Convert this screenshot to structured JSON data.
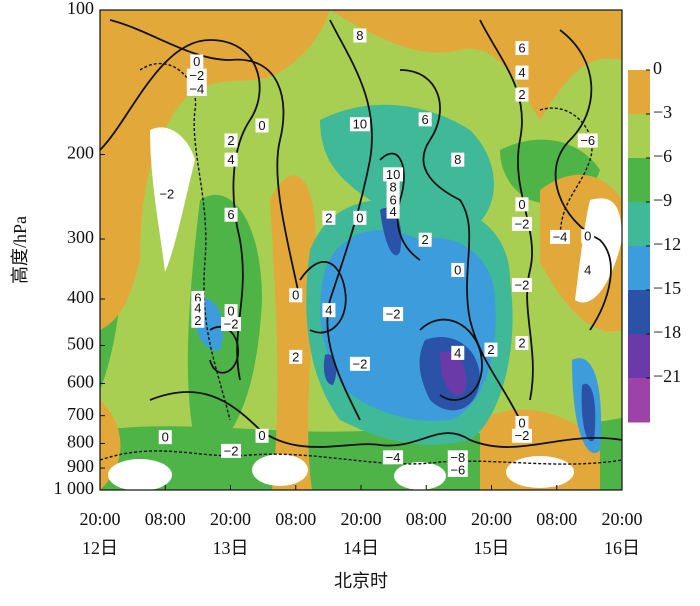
{
  "chart_data": {
    "type": "contourf",
    "y_label": "高度/hPa",
    "x_label": "北京时",
    "xlim": [
      0,
      96
    ],
    "xticks": [
      {
        "value": 0,
        "label": "20:00"
      },
      {
        "value": 12,
        "label": "08:00"
      },
      {
        "value": 24,
        "label": "20:00"
      },
      {
        "value": 36,
        "label": "08:00"
      },
      {
        "value": 48,
        "label": "20:00"
      },
      {
        "value": 60,
        "label": "08:00"
      },
      {
        "value": 72,
        "label": "20:00"
      },
      {
        "value": 84,
        "label": "08:00"
      },
      {
        "value": 96,
        "label": "20:00"
      }
    ],
    "xticks_days": [
      {
        "value": 0,
        "label": "12日"
      },
      {
        "value": 24,
        "label": "13日"
      },
      {
        "value": 48,
        "label": "14日"
      },
      {
        "value": 72,
        "label": "15日"
      },
      {
        "value": 96,
        "label": "16日"
      }
    ],
    "ylim": [
      1000,
      100
    ],
    "y_log": true,
    "yticks": [
      100,
      200,
      300,
      400,
      500,
      600,
      700,
      800,
      900,
      {
        "value": 1000,
        "label": "1 000"
      }
    ],
    "colorbar": {
      "clim": [
        0,
        -24
      ],
      "colors": [
        "#e3a83a",
        "#a8cf52",
        "#4fb448",
        "#3fb998",
        "#3d9ddc",
        "#2a53a8",
        "#6a3aa8",
        "#9c42a8"
      ],
      "ticks": [
        0,
        {
          "value": -3,
          "label": "−3"
        },
        {
          "value": -6,
          "label": "−6"
        },
        {
          "value": -9,
          "label": "−9"
        },
        {
          "value": -12,
          "label": "−12"
        },
        {
          "value": -15,
          "label": "−15"
        },
        {
          "value": -18,
          "label": "−18"
        },
        {
          "value": -21,
          "label": "−21"
        }
      ]
    },
    "contour_labels": [
      {
        "text": "0",
        "x": 17.8,
        "y": 128
      },
      {
        "text": "−2",
        "x": 17.8,
        "y": 137
      },
      {
        "text": "−4",
        "x": 17.8,
        "y": 146
      },
      {
        "text": "0",
        "x": 29.8,
        "y": 174
      },
      {
        "text": "2",
        "x": 24.1,
        "y": 187
      },
      {
        "text": "4",
        "x": 24.1,
        "y": 205
      },
      {
        "text": "−2",
        "x": 12.3,
        "y": 242
      },
      {
        "text": "6",
        "x": 24.1,
        "y": 267
      },
      {
        "text": "2",
        "x": 42.1,
        "y": 271
      },
      {
        "text": "0",
        "x": 47.8,
        "y": 271
      },
      {
        "text": "8",
        "x": 47.8,
        "y": 113
      },
      {
        "text": "10",
        "x": 47.8,
        "y": 173
      },
      {
        "text": "6",
        "x": 59.8,
        "y": 169
      },
      {
        "text": "8",
        "x": 65.8,
        "y": 205
      },
      {
        "text": "10",
        "x": 53.9,
        "y": 220
      },
      {
        "text": "8",
        "x": 53.9,
        "y": 234
      },
      {
        "text": "6",
        "x": 53.9,
        "y": 249
      },
      {
        "text": "4",
        "x": 53.9,
        "y": 263
      },
      {
        "text": "2",
        "x": 59.8,
        "y": 301
      },
      {
        "text": "6",
        "x": 77.6,
        "y": 120
      },
      {
        "text": "4",
        "x": 77.6,
        "y": 135
      },
      {
        "text": "2",
        "x": 77.6,
        "y": 150
      },
      {
        "text": "−6",
        "x": 89.7,
        "y": 187
      },
      {
        "text": "0",
        "x": 77.6,
        "y": 254
      },
      {
        "text": "−2",
        "x": 77.6,
        "y": 279
      },
      {
        "text": "−4",
        "x": 84.6,
        "y": 297
      },
      {
        "text": "0",
        "x": 89.7,
        "y": 296
      },
      {
        "text": "4",
        "x": 89.7,
        "y": 348
      },
      {
        "text": "−2",
        "x": 77.6,
        "y": 374
      },
      {
        "text": "0",
        "x": 65.8,
        "y": 348
      },
      {
        "text": "0",
        "x": 36.0,
        "y": 393
      },
      {
        "text": "4",
        "x": 42.1,
        "y": 422
      },
      {
        "text": "−2",
        "x": 53.9,
        "y": 430
      },
      {
        "text": "6",
        "x": 18.0,
        "y": 398
      },
      {
        "text": "4",
        "x": 18.0,
        "y": 418
      },
      {
        "text": "2",
        "x": 18.0,
        "y": 444
      },
      {
        "text": "0",
        "x": 24.1,
        "y": 424
      },
      {
        "text": "−2",
        "x": 24.1,
        "y": 451
      },
      {
        "text": "2",
        "x": 36.0,
        "y": 528
      },
      {
        "text": "−2",
        "x": 47.8,
        "y": 546
      },
      {
        "text": "4",
        "x": 65.8,
        "y": 518
      },
      {
        "text": "2",
        "x": 71.9,
        "y": 510
      },
      {
        "text": "2",
        "x": 77.6,
        "y": 494
      },
      {
        "text": "0",
        "x": 12.0,
        "y": 776
      },
      {
        "text": "−2",
        "x": 24.1,
        "y": 829
      },
      {
        "text": "0",
        "x": 29.8,
        "y": 771
      },
      {
        "text": "−4",
        "x": 53.9,
        "y": 855
      },
      {
        "text": "−8",
        "x": 65.8,
        "y": 855
      },
      {
        "text": "−6",
        "x": 65.8,
        "y": 908
      },
      {
        "text": "0",
        "x": 77.6,
        "y": 725
      },
      {
        "text": "−2",
        "x": 77.6,
        "y": 771
      }
    ]
  }
}
